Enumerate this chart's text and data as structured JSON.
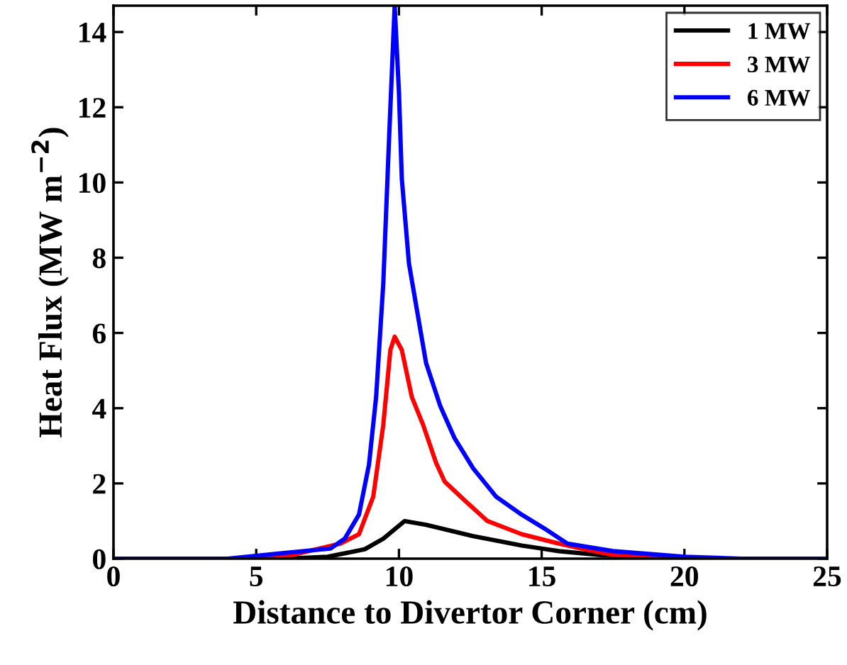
{
  "chart_data": {
    "type": "line",
    "xlabel": "Distance to Divertor Corner (cm)",
    "ylabel": "Heat Flux (MW m$^{−2}$)",
    "xlim": [
      0,
      25
    ],
    "ylim": [
      0,
      14.7
    ],
    "xticks": [
      0,
      5,
      10,
      15,
      20,
      25
    ],
    "yticks": [
      0,
      2,
      4,
      6,
      8,
      10,
      12,
      14
    ],
    "grid": false,
    "legend": "top right",
    "marker": "none",
    "line_style": "solid",
    "series": [
      {
        "name": "1 MW",
        "color": "#000000",
        "x": [
          0,
          6,
          7.5,
          8.8,
          9.45,
          10.2,
          10.95,
          12.6,
          14.3,
          15.6,
          17,
          18,
          20,
          25
        ],
        "values": [
          0,
          0,
          0.05,
          0.25,
          0.53,
          1.0,
          0.9,
          0.6,
          0.35,
          0.2,
          0.1,
          0.05,
          0,
          0
        ]
      },
      {
        "name": "3 MW",
        "color": "#ff0000",
        "x": [
          0,
          5,
          6,
          7.95,
          8.6,
          9.1,
          9.45,
          9.7,
          9.85,
          10.1,
          10.45,
          10.85,
          11.3,
          11.6,
          12.3,
          13.1,
          14.3,
          15.6,
          16.5,
          17.5,
          20,
          25
        ],
        "values": [
          0,
          0,
          0.05,
          0.4,
          0.65,
          1.65,
          3.55,
          5.55,
          5.9,
          5.55,
          4.3,
          3.55,
          2.55,
          2.05,
          1.55,
          1.0,
          0.65,
          0.4,
          0.25,
          0.1,
          0,
          0
        ]
      },
      {
        "name": "6 MW",
        "color": "#0000ff",
        "x": [
          0,
          4,
          5.97,
          7.6,
          8.1,
          8.6,
          8.95,
          9.2,
          9.45,
          9.65,
          9.85,
          10.0,
          10.1,
          10.35,
          10.7,
          10.95,
          11.45,
          11.95,
          12.6,
          13.4,
          14.3,
          15.1,
          15.9,
          17.5,
          20,
          22,
          25
        ],
        "values": [
          0,
          0,
          0.15,
          0.27,
          0.53,
          1.17,
          2.5,
          4.3,
          7.3,
          11.1,
          14.7,
          12.4,
          10.1,
          7.85,
          6.3,
          5.2,
          4.05,
          3.2,
          2.4,
          1.65,
          1.17,
          0.8,
          0.4,
          0.2,
          0.05,
          0,
          0
        ]
      }
    ]
  }
}
